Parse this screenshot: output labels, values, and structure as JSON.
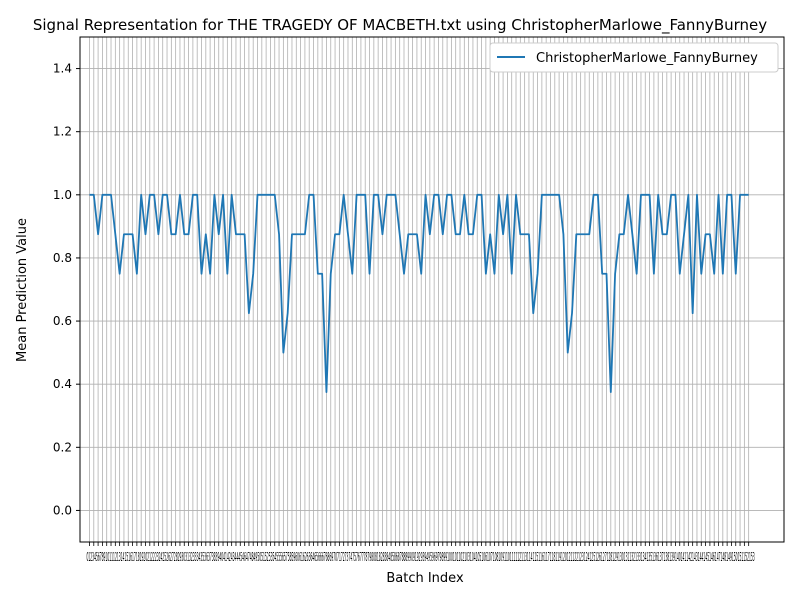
{
  "chart_data": {
    "type": "line",
    "title": "Signal Representation for THE TRAGEDY OF MACBETH.txt using ChristopherMarlowe_FannyBurney",
    "xlabel": "Batch Index",
    "ylabel": "Mean Prediction Value",
    "xlim": [
      -2.2,
      161.2
    ],
    "ylim": [
      -0.1,
      1.5
    ],
    "yticks": [
      0.0,
      0.2,
      0.4,
      0.6,
      0.8,
      1.0,
      1.2,
      1.4
    ],
    "ytick_labels": [
      "0.0",
      "0.2",
      "0.4",
      "0.6",
      "0.8",
      "1.0",
      "1.2",
      "1.4"
    ],
    "xticks_note": "integer ticks 0..153, labels overlap",
    "xtick_label_text": "0123456789101112131415161718192021222324252627282930313233343536373839404142434445464748495051525354555657585960616263646566676869707172737475767778798081828384858687888990919293949596979899100101102103104105106107108109110111112113114115116117118119120121122123124125126127128129130131132133134135136137138139140141142143144145146147148149150151152153",
    "grid": true,
    "legend_position": "upper right",
    "color": "#1f77b4",
    "series": [
      {
        "name": "ChristopherMarlowe_FannyBurney",
        "values": [
          1.0,
          1.0,
          0.875,
          1.0,
          1.0,
          1.0,
          0.875,
          0.75,
          0.875,
          0.875,
          0.875,
          0.75,
          1.0,
          0.875,
          1.0,
          1.0,
          0.875,
          1.0,
          1.0,
          0.875,
          0.875,
          1.0,
          0.875,
          0.875,
          1.0,
          1.0,
          0.75,
          0.875,
          0.75,
          1.0,
          0.875,
          1.0,
          0.75,
          1.0,
          0.875,
          0.875,
          0.875,
          0.625,
          0.75,
          1.0,
          1.0,
          1.0,
          1.0,
          1.0,
          0.875,
          0.5,
          0.625,
          0.875,
          0.875,
          0.875,
          0.875,
          1.0,
          1.0,
          0.75,
          0.75,
          0.375,
          0.75,
          0.875,
          0.875,
          1.0,
          0.875,
          0.75,
          1.0,
          1.0,
          1.0,
          0.75,
          1.0,
          1.0,
          0.875,
          1.0,
          1.0,
          1.0,
          0.875,
          0.75,
          0.875,
          0.875,
          0.875,
          0.75,
          1.0,
          0.875,
          1.0,
          1.0,
          0.875,
          1.0,
          1.0,
          0.875,
          0.875,
          1.0,
          0.875,
          0.875,
          1.0,
          1.0,
          0.75,
          0.875,
          0.75,
          1.0,
          0.875,
          1.0,
          0.75,
          1.0,
          0.875,
          0.875,
          0.875,
          0.625,
          0.75,
          1.0,
          1.0,
          1.0,
          1.0,
          1.0,
          0.875,
          0.5,
          0.625,
          0.875,
          0.875,
          0.875,
          0.875,
          1.0,
          1.0,
          0.75,
          0.75,
          0.375,
          0.75,
          0.875,
          0.875,
          1.0,
          0.875,
          0.75,
          1.0,
          1.0,
          1.0,
          0.75,
          1.0,
          0.875,
          0.875,
          1.0,
          1.0,
          0.75,
          0.875,
          1.0,
          0.625,
          1.0,
          0.75,
          0.875,
          0.875,
          0.75,
          1.0,
          0.75,
          1.0,
          1.0,
          0.75,
          1.0,
          1.0,
          1.0
        ]
      }
    ]
  }
}
